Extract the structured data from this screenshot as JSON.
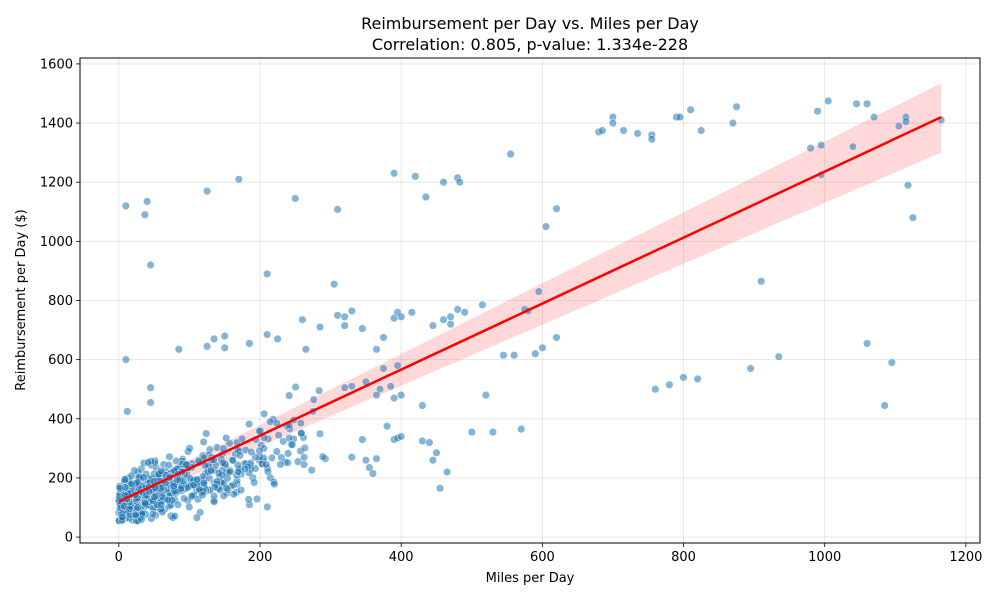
{
  "chart_data": {
    "type": "scatter",
    "title": "Reimbursement per Day vs. Miles per Day",
    "subtitle": "Correlation: 0.805, p-value: 1.334e-228",
    "xlabel": "Miles per Day",
    "ylabel": "Reimbursement per Day ($)",
    "xlim": [
      -55,
      1220
    ],
    "ylim": [
      -20,
      1620
    ],
    "xticks": [
      0,
      200,
      400,
      600,
      800,
      1000,
      1200
    ],
    "yticks": [
      0,
      200,
      400,
      600,
      800,
      1000,
      1200,
      1400,
      1600
    ],
    "grid": true,
    "colors": {
      "points": "#1f77b4",
      "regression": "#ff0000",
      "band": "#ff0000"
    },
    "regression": {
      "x": [
        0,
        1165
      ],
      "y": [
        120,
        1420
      ],
      "ci_low": [
        100,
        1300
      ],
      "ci_high": [
        140,
        1535
      ]
    },
    "scatter_points": [
      [
        10,
        1120
      ],
      [
        40,
        1135
      ],
      [
        37,
        1090
      ],
      [
        45,
        920
      ],
      [
        10,
        600
      ],
      [
        12,
        425
      ],
      [
        45,
        505
      ],
      [
        45,
        455
      ],
      [
        125,
        1170
      ],
      [
        170,
        1210
      ],
      [
        210,
        890
      ],
      [
        250,
        1145
      ],
      [
        310,
        1108
      ],
      [
        390,
        1230
      ],
      [
        420,
        1220
      ],
      [
        435,
        1150
      ],
      [
        460,
        1200
      ],
      [
        480,
        1215
      ],
      [
        483,
        1200
      ],
      [
        555,
        1295
      ],
      [
        605,
        1050
      ],
      [
        620,
        1110
      ],
      [
        85,
        635
      ],
      [
        125,
        645
      ],
      [
        135,
        670
      ],
      [
        150,
        680
      ],
      [
        150,
        640
      ],
      [
        185,
        655
      ],
      [
        210,
        685
      ],
      [
        225,
        670
      ],
      [
        260,
        735
      ],
      [
        265,
        635
      ],
      [
        285,
        710
      ],
      [
        305,
        855
      ],
      [
        310,
        750
      ],
      [
        320,
        745
      ],
      [
        320,
        715
      ],
      [
        330,
        765
      ],
      [
        345,
        705
      ],
      [
        365,
        635
      ],
      [
        375,
        675
      ],
      [
        390,
        740
      ],
      [
        395,
        760
      ],
      [
        400,
        745
      ],
      [
        415,
        760
      ],
      [
        445,
        715
      ],
      [
        460,
        735
      ],
      [
        470,
        745
      ],
      [
        470,
        720
      ],
      [
        480,
        770
      ],
      [
        490,
        760
      ],
      [
        515,
        785
      ],
      [
        560,
        615
      ],
      [
        575,
        770
      ],
      [
        580,
        765
      ],
      [
        590,
        620
      ],
      [
        595,
        830
      ],
      [
        600,
        640
      ],
      [
        620,
        675
      ],
      [
        320,
        505
      ],
      [
        330,
        510
      ],
      [
        350,
        525
      ],
      [
        370,
        500
      ],
      [
        385,
        510
      ],
      [
        390,
        470
      ],
      [
        395,
        580
      ],
      [
        400,
        480
      ],
      [
        375,
        570
      ],
      [
        365,
        480
      ],
      [
        430,
        445
      ],
      [
        330,
        270
      ],
      [
        345,
        330
      ],
      [
        350,
        260
      ],
      [
        355,
        235
      ],
      [
        360,
        215
      ],
      [
        365,
        265
      ],
      [
        380,
        375
      ],
      [
        390,
        330
      ],
      [
        395,
        335
      ],
      [
        400,
        340
      ],
      [
        430,
        325
      ],
      [
        440,
        320
      ],
      [
        445,
        260
      ],
      [
        450,
        285
      ],
      [
        455,
        165
      ],
      [
        465,
        220
      ],
      [
        500,
        355
      ],
      [
        520,
        480
      ],
      [
        530,
        355
      ],
      [
        545,
        615
      ],
      [
        570,
        365
      ],
      [
        680,
        1370
      ],
      [
        685,
        1375
      ],
      [
        700,
        1420
      ],
      [
        700,
        1400
      ],
      [
        715,
        1375
      ],
      [
        735,
        1365
      ],
      [
        755,
        1360
      ],
      [
        755,
        1345
      ],
      [
        790,
        1420
      ],
      [
        795,
        1420
      ],
      [
        810,
        1445
      ],
      [
        825,
        1375
      ],
      [
        870,
        1400
      ],
      [
        875,
        1455
      ],
      [
        980,
        1315
      ],
      [
        990,
        1440
      ],
      [
        995,
        1325
      ],
      [
        995,
        1225
      ],
      [
        1005,
        1475
      ],
      [
        1040,
        1320
      ],
      [
        1045,
        1465
      ],
      [
        1060,
        1465
      ],
      [
        1070,
        1420
      ],
      [
        1105,
        1390
      ],
      [
        1115,
        1420
      ],
      [
        1115,
        1405
      ],
      [
        1118,
        1190
      ],
      [
        1125,
        1080
      ],
      [
        1165,
        1410
      ],
      [
        760,
        500
      ],
      [
        780,
        515
      ],
      [
        800,
        540
      ],
      [
        820,
        535
      ],
      [
        895,
        570
      ],
      [
        910,
        865
      ],
      [
        935,
        610
      ],
      [
        1060,
        655
      ],
      [
        1085,
        445
      ],
      [
        1095,
        590
      ]
    ]
  }
}
